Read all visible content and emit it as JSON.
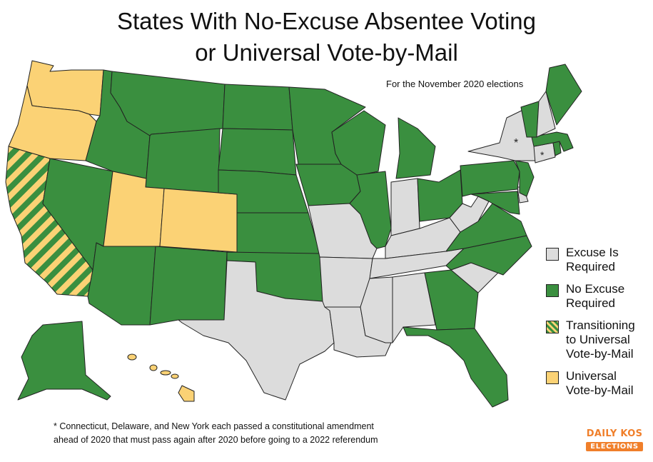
{
  "title": {
    "line1": "States With No-Excuse Absentee Voting",
    "line2": "or Universal Vote-by-Mail"
  },
  "subtitle": "For the November 2020 elections",
  "colors": {
    "excuse_required": "#dcdcdc",
    "no_excuse": "#3a8f3f",
    "universal": "#fbd275",
    "stroke": "#222222",
    "brand": "#f07f2a"
  },
  "legend": [
    {
      "key": "excuse",
      "label": "Excuse Is Required"
    },
    {
      "key": "noexcuse",
      "label": "No Excuse Required"
    },
    {
      "key": "transition",
      "label": "Transitioning to Universal Vote-by-Mail"
    },
    {
      "key": "universal",
      "label": "Universal Vote-by-Mail"
    }
  ],
  "map_markers": [
    "*",
    "*"
  ],
  "footnote": {
    "line1": "* Connecticut, Delaware, and New York each passed a constitutional amendment",
    "line2": "ahead of 2020 that must pass again after 2020 before going to a 2022 referendum"
  },
  "logo": {
    "top": "DAILY KOS",
    "bottom": "ELECTIONS"
  },
  "states": {
    "WA": "universal",
    "OR": "universal",
    "CA": "transition",
    "NV": "noexcuse",
    "ID": "noexcuse",
    "MT": "noexcuse",
    "WY": "noexcuse",
    "UT": "universal",
    "CO": "universal",
    "AZ": "noexcuse",
    "NM": "noexcuse",
    "ND": "noexcuse",
    "SD": "noexcuse",
    "NE": "noexcuse",
    "KS": "noexcuse",
    "OK": "noexcuse",
    "TX": "excuse",
    "MN": "noexcuse",
    "IA": "noexcuse",
    "MO": "excuse",
    "AR": "excuse",
    "LA": "excuse",
    "WI": "noexcuse",
    "IL": "noexcuse",
    "MI": "noexcuse",
    "IN": "excuse",
    "OH": "noexcuse",
    "KY": "excuse",
    "TN": "excuse",
    "MS": "excuse",
    "AL": "excuse",
    "GA": "noexcuse",
    "FL": "noexcuse",
    "SC": "excuse",
    "NC": "noexcuse",
    "VA": "noexcuse",
    "WV": "excuse",
    "MD": "noexcuse",
    "DE": "excuse",
    "PA": "noexcuse",
    "NJ": "noexcuse",
    "NY": "excuse",
    "CT": "excuse",
    "RI": "noexcuse",
    "MA": "noexcuse",
    "VT": "noexcuse",
    "NH": "excuse",
    "ME": "noexcuse",
    "AK": "noexcuse",
    "HI": "universal"
  }
}
